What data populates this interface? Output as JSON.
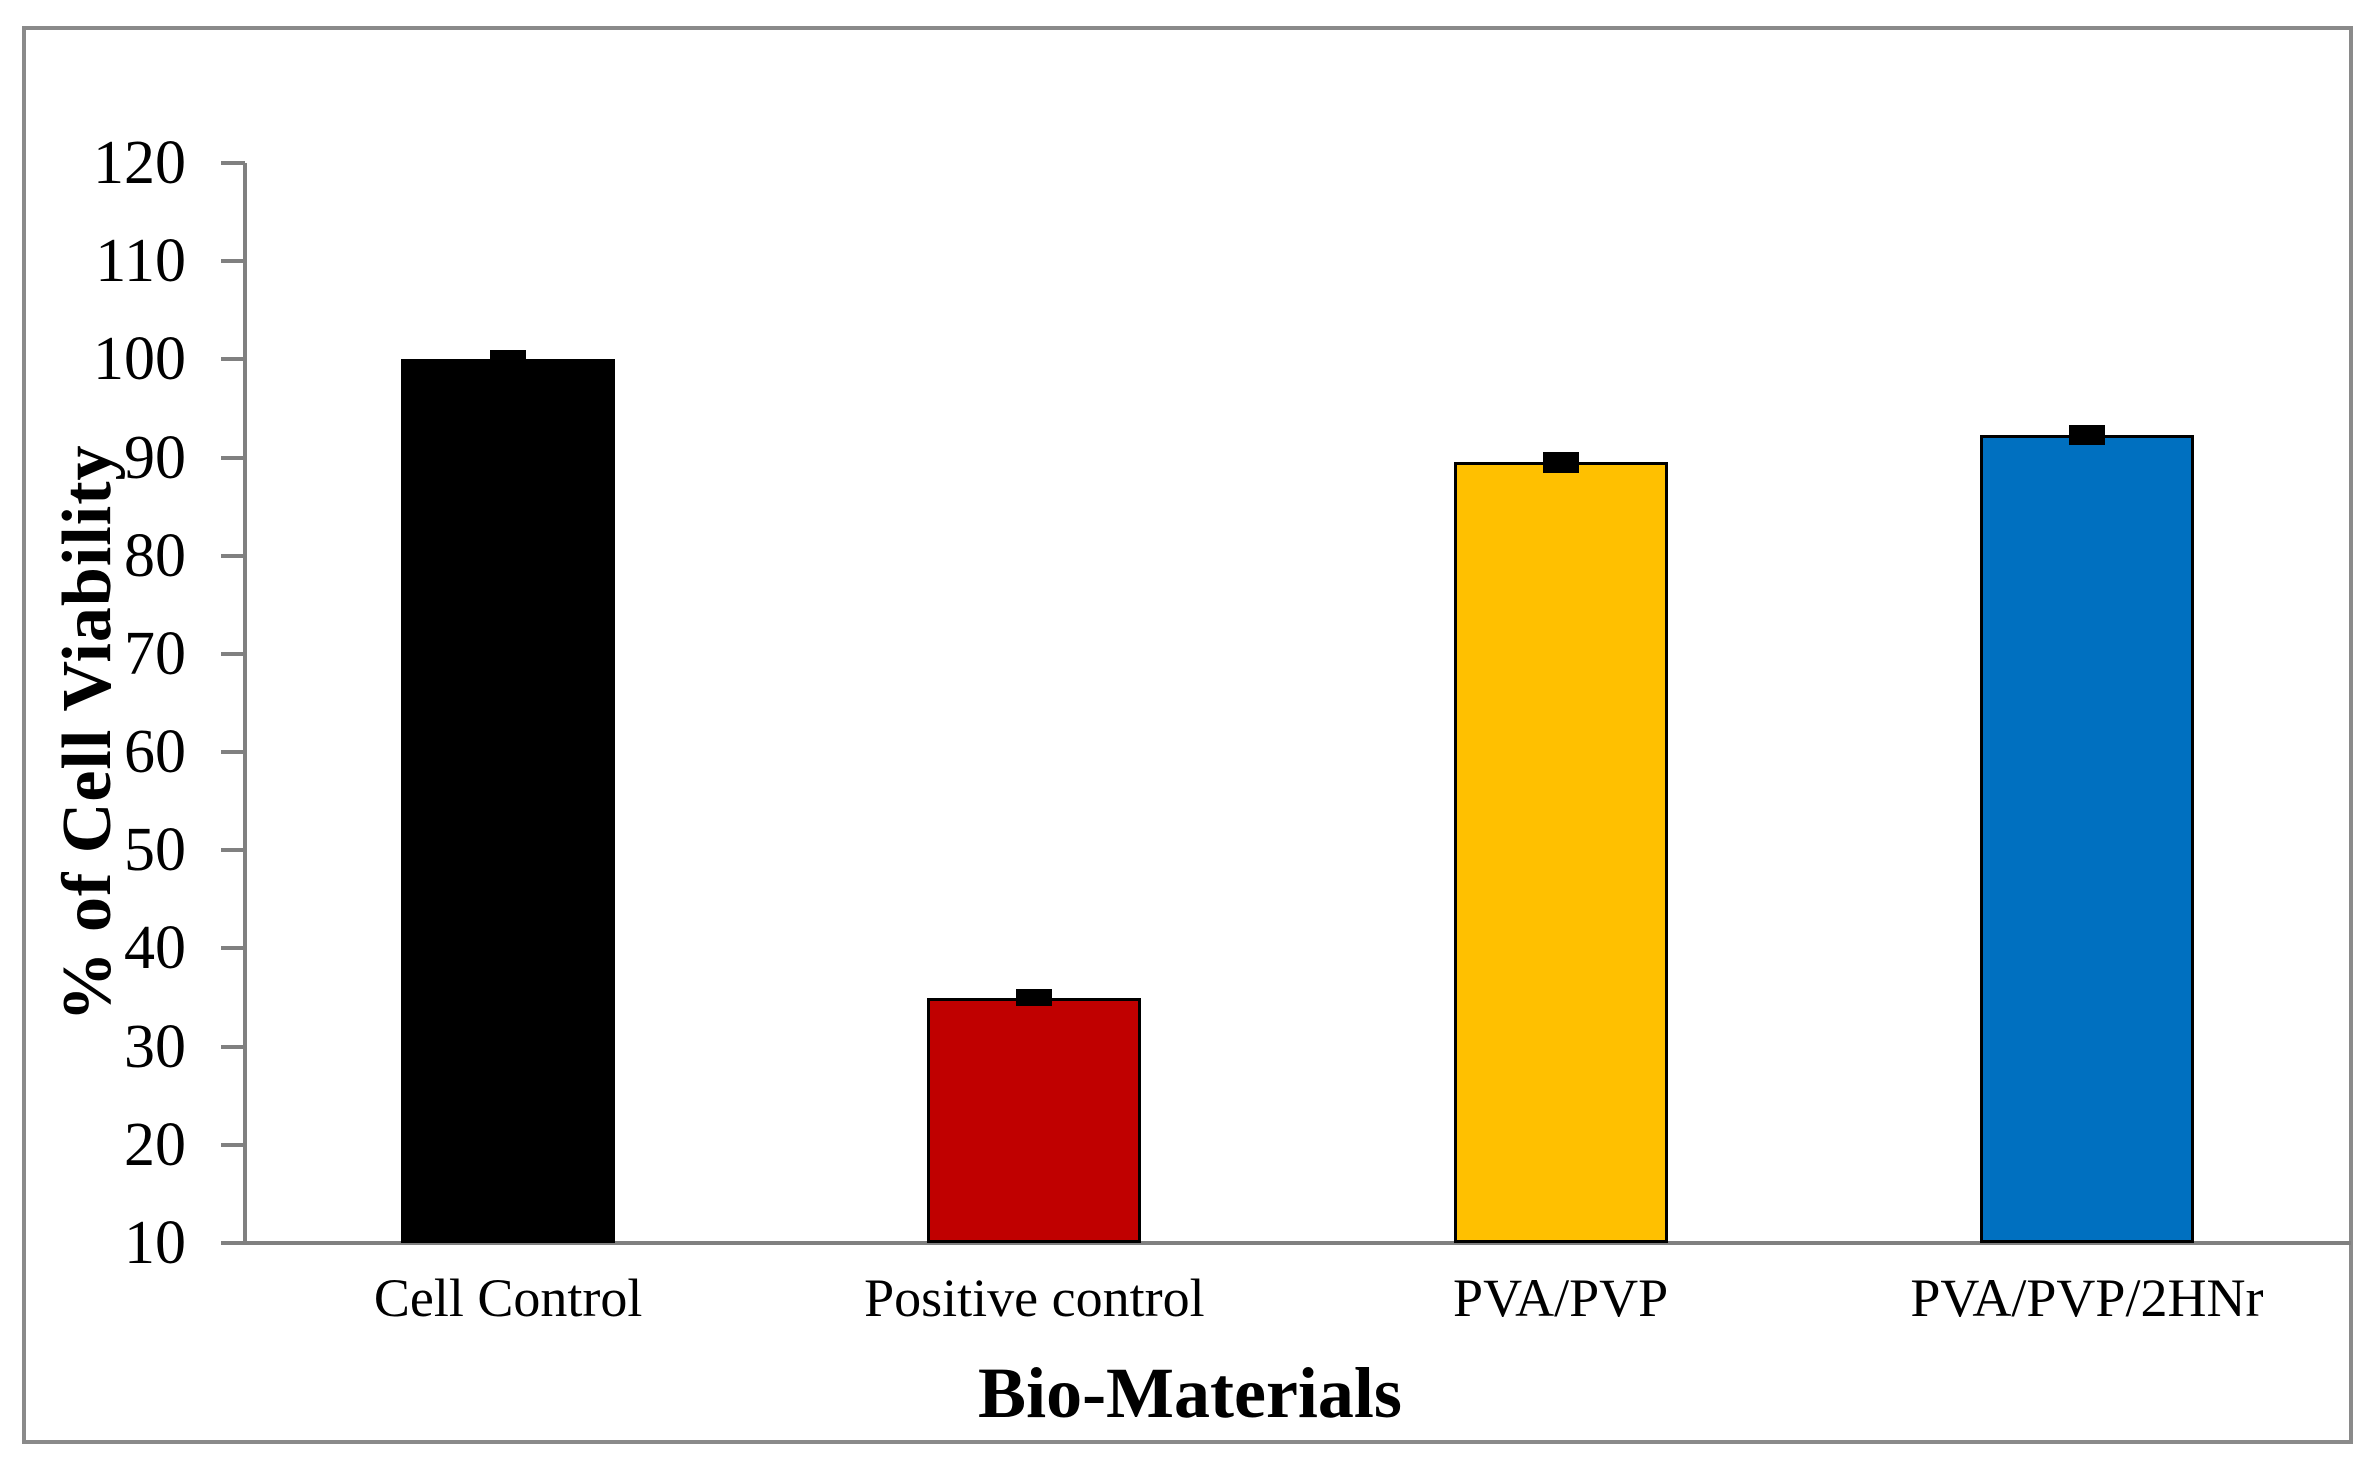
{
  "chart_data": {
    "type": "bar",
    "title": "",
    "xlabel": "Bio-Materials",
    "ylabel": "% of Cell Viability",
    "categories": [
      "Cell Control",
      "Positive control",
      "PVA/PVP",
      "PVA/PVP/2HNr"
    ],
    "values": [
      100,
      35,
      89.5,
      92.3
    ],
    "errors": [
      0.5,
      0.5,
      0.7,
      0.6
    ],
    "series": [
      {
        "name": "% of Cell Viability",
        "values": [
          100,
          35,
          89.5,
          92.3
        ]
      }
    ],
    "bar_colors": [
      "#000000",
      "#C00000",
      "#FFC000",
      "#0070C0"
    ],
    "bar_edge_color": "#000000",
    "error_bar_color": "#000000",
    "ylim": [
      10,
      120
    ],
    "yticks": [
      10,
      20,
      30,
      40,
      50,
      60,
      70,
      80,
      90,
      100,
      110,
      120
    ],
    "axis_color": "#808080",
    "frame_color": "#8a8a8a",
    "background_color": "#ffffff",
    "grid": false,
    "legend_position": "none"
  }
}
